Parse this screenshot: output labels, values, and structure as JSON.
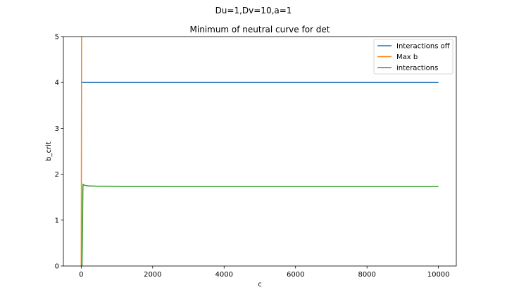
{
  "figure": {
    "suptitle": "Du=1,Dv=10,a=1"
  },
  "chart_data": {
    "type": "line",
    "title": "Minimum of neutral curve for det",
    "xlabel": "c",
    "ylabel": "b_crit",
    "xlim": [
      -500,
      10500
    ],
    "ylim": [
      0,
      5
    ],
    "xticks": [
      0,
      2000,
      4000,
      6000,
      8000,
      10000
    ],
    "yticks": [
      0,
      1,
      2,
      3,
      4,
      5
    ],
    "grid": false,
    "legend_position": "top-right",
    "series": [
      {
        "name": "Interactions off",
        "color": "#1f77b4",
        "x": [
          0,
          10000
        ],
        "y": [
          4.0,
          4.0
        ]
      },
      {
        "name": "Max b",
        "color": "#ff7f0e",
        "x": [
          0,
          2,
          5,
          8,
          10,
          12,
          15
        ],
        "y": [
          0,
          1.0,
          2.5,
          4.0,
          4.8,
          5.3,
          6.0
        ]
      },
      {
        "name": "interactions",
        "color": "#2ca02c",
        "x": [
          10,
          20,
          30,
          40,
          45,
          50,
          60,
          80,
          120,
          200,
          400,
          1000,
          3000,
          10000
        ],
        "y": [
          0,
          0,
          0.5,
          1.2,
          1.6,
          1.78,
          1.775,
          1.765,
          1.755,
          1.745,
          1.74,
          1.737,
          1.735,
          1.735
        ]
      }
    ]
  }
}
